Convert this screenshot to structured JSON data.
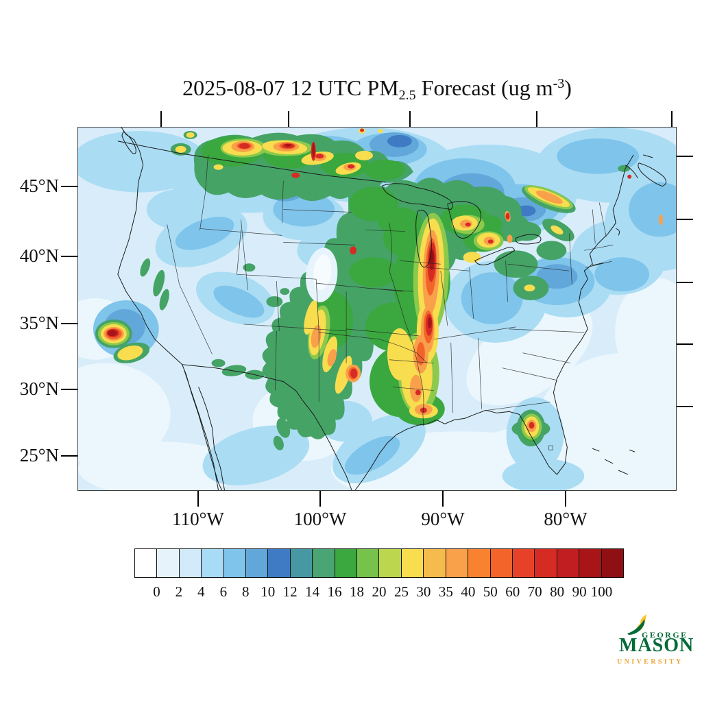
{
  "title": {
    "prefix": "2025-08-07 12 UTC PM",
    "subscript": "2.5",
    "middle": " Forecast (ug m",
    "superscript": "-3",
    "suffix": ")"
  },
  "map": {
    "lat_tick_labels": [
      "45°N",
      "40°N",
      "35°N",
      "30°N",
      "25°N"
    ],
    "lon_tick_labels": [
      "110°W",
      "100°W",
      "90°W",
      "80°W"
    ]
  },
  "colorbar": {
    "tick_labels": [
      "0",
      "2",
      "4",
      "6",
      "8",
      "10",
      "12",
      "14",
      "16",
      "18",
      "20",
      "25",
      "30",
      "35",
      "40",
      "50",
      "60",
      "70",
      "80",
      "90",
      "100"
    ],
    "segment_colors": [
      "#ffffff",
      "#e6f3fb",
      "#d2eafa",
      "#a8dcf6",
      "#7fc4ea",
      "#62a7da",
      "#3e7bc4",
      "#4698a3",
      "#4aa473",
      "#3aa83e",
      "#76c24a",
      "#bcd64e",
      "#f8dd4f",
      "#f5bb4d",
      "#f9a04a",
      "#f8822f",
      "#f2642a",
      "#e74228",
      "#d62b23",
      "#c01e20",
      "#a81418",
      "#8f1013"
    ]
  },
  "logo": {
    "line1": "GEORGE",
    "line2": "MASON",
    "line3": "UNIVERSITY",
    "green": "#046a38",
    "gold": "#eda63a"
  }
}
